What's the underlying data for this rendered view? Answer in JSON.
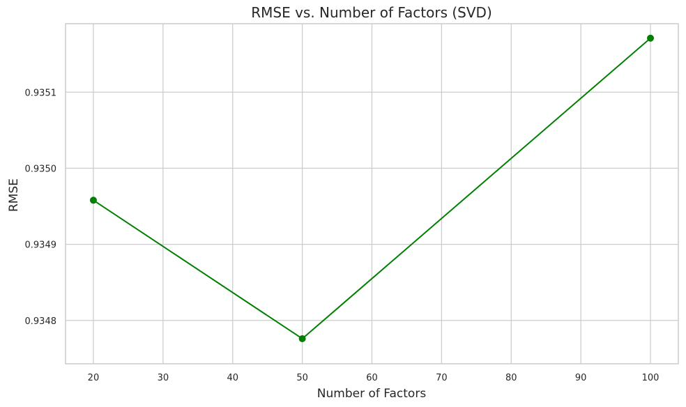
{
  "chart_data": {
    "type": "line",
    "title": "RMSE vs. Number of Factors (SVD)",
    "xlabel": "Number of Factors",
    "ylabel": "RMSE",
    "xlim": [
      16,
      104
    ],
    "ylim": [
      0.934743,
      0.93519
    ],
    "xticks": [
      20,
      30,
      40,
      50,
      60,
      70,
      80,
      90,
      100
    ],
    "xtick_labels": [
      "20",
      "30",
      "40",
      "50",
      "60",
      "70",
      "80",
      "90",
      "100"
    ],
    "yticks": [
      0.9348,
      0.9349,
      0.935,
      0.9351
    ],
    "ytick_labels": [
      "0.9348",
      "0.9349",
      "0.9350",
      "0.9351"
    ],
    "grid": true,
    "series": [
      {
        "x": [
          20,
          50,
          100
        ],
        "values": [
          0.934958,
          0.934776,
          0.935171
        ],
        "color": "#008000",
        "marker": "circle"
      }
    ]
  }
}
